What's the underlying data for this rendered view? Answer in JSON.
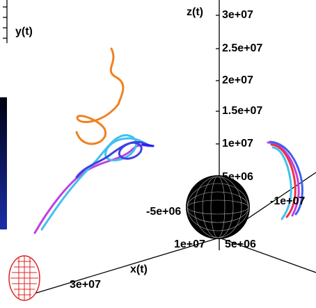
{
  "plot": {
    "z_axis": {
      "label": "z(t)",
      "ticks": [
        "3e+07",
        "2.5e+07",
        "2e+07",
        "1.5e+07",
        "1e+07",
        "5e+06"
      ]
    },
    "y_axis": {
      "label": "y(t)",
      "ticks": [
        "-5e+06",
        "-1e+07"
      ]
    },
    "x_axis": {
      "label": "x(t)",
      "ticks": [
        "1e+07",
        "5e+06",
        "3e+07"
      ]
    }
  }
}
